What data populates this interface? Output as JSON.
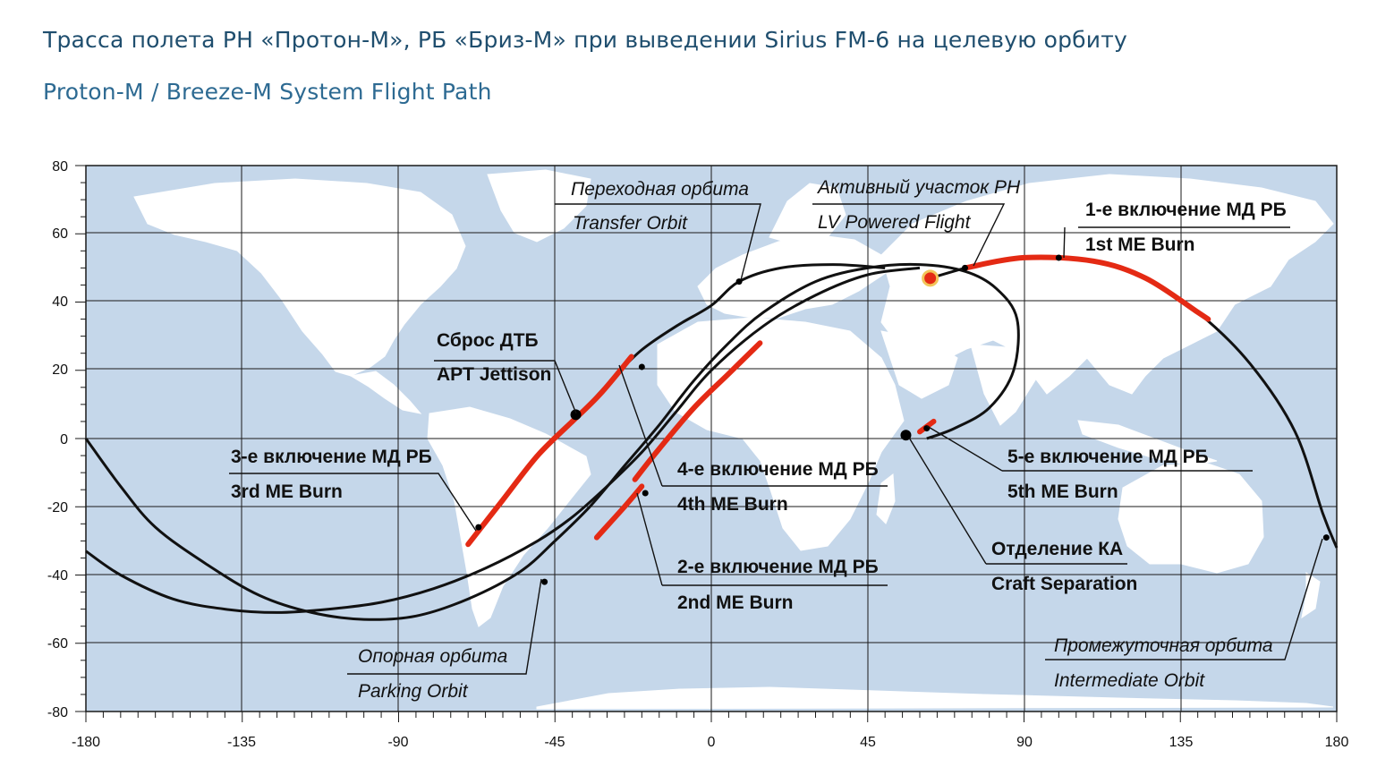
{
  "title_ru": "Трасса полета РН «Протон-М», РБ «Бриз-М» при выведении Sirius FM-6 на целевую орбиту",
  "title_en": "Proton-M / Breeze-M System Flight Path",
  "axes": {
    "x_ticks": [
      "-180",
      "-135",
      "-90",
      "-45",
      "0",
      "45",
      "90",
      "135",
      "180"
    ],
    "y_ticks": [
      "80",
      "60",
      "40",
      "20",
      "0",
      "-20",
      "-40",
      "-60",
      "-80"
    ],
    "xlim": [
      -180,
      180
    ],
    "ylim": [
      -80,
      80
    ]
  },
  "colors": {
    "ocean": "#c5d7ea",
    "land": "#ffffff",
    "grid": "#1a1a1a",
    "track": "#111111",
    "burn": "#e42a14",
    "title": "#1f4e6e"
  },
  "labels": {
    "transfer_ru": "Переходная орбита",
    "transfer_en": "Transfer Orbit",
    "powered_ru": "Активный участок РН",
    "powered_en": "LV Powered Flight",
    "burn1_ru": "1-е включение МД РБ",
    "burn1_en": "1st ME Burn",
    "apt_ru": "Сброс ДТБ",
    "apt_en": "APT Jettison",
    "burn3_ru": "3-е включение МД РБ",
    "burn3_en": "3rd ME Burn",
    "burn4_ru": "4-е включение МД РБ",
    "burn4_en": "4th ME Burn",
    "burn5_ru": "5-е включение МД РБ",
    "burn5_en": "5th ME Burn",
    "burn2_ru": "2-е включение МД РБ",
    "burn2_en": "2nd ME Burn",
    "sep_ru": "Отделение КА",
    "sep_en": "Craft Separation",
    "parking_ru": "Опорная орбита",
    "parking_en": "Parking Orbit",
    "intermediate_ru": "Промежуточная орбита",
    "intermediate_en": "Intermediate Orbit"
  },
  "tracks": [
    {
      "kind": "lv-powered",
      "points": [
        [
          63,
          47
        ],
        [
          73,
          50
        ]
      ]
    },
    {
      "kind": "parking-orbit",
      "points": [
        [
          73,
          50
        ],
        [
          90,
          53
        ],
        [
          110,
          52
        ],
        [
          125,
          47
        ],
        [
          140,
          37
        ],
        [
          155,
          22
        ],
        [
          168,
          2
        ],
        [
          176,
          -22
        ],
        [
          180,
          -32
        ]
      ]
    },
    {
      "kind": "parking-orbit",
      "points": [
        [
          -180,
          -33
        ],
        [
          -170,
          -40
        ],
        [
          -155,
          -47
        ],
        [
          -140,
          -50
        ],
        [
          -125,
          -51
        ],
        [
          -110,
          -50
        ],
        [
          -95,
          -48
        ],
        [
          -80,
          -44
        ],
        [
          -65,
          -38
        ],
        [
          -50,
          -30
        ],
        [
          -40,
          -23
        ],
        [
          -30,
          -14
        ],
        [
          -20,
          -4
        ],
        [
          -10,
          8
        ],
        [
          0,
          20
        ],
        [
          15,
          33
        ],
        [
          30,
          42
        ],
        [
          45,
          48
        ],
        [
          60,
          50
        ]
      ]
    },
    {
      "kind": "intermediate-orbit",
      "points": [
        [
          -180,
          0
        ],
        [
          -170,
          -14
        ],
        [
          -160,
          -26
        ],
        [
          -145,
          -37
        ],
        [
          -130,
          -46
        ],
        [
          -115,
          -51
        ],
        [
          -100,
          -53
        ],
        [
          -85,
          -52
        ],
        [
          -70,
          -47
        ],
        [
          -55,
          -39
        ],
        [
          -45,
          -30
        ],
        [
          -35,
          -20
        ],
        [
          -25,
          -8
        ],
        [
          -15,
          4
        ],
        [
          -5,
          17
        ],
        [
          5,
          28
        ],
        [
          15,
          37
        ],
        [
          30,
          46
        ],
        [
          45,
          50
        ],
        [
          60,
          51
        ],
        [
          73,
          49
        ],
        [
          82,
          44
        ],
        [
          88,
          35
        ],
        [
          87,
          20
        ],
        [
          80,
          9
        ],
        [
          70,
          3
        ],
        [
          62,
          0
        ]
      ]
    },
    {
      "kind": "transfer-orbit",
      "points": [
        [
          -70,
          -31
        ],
        [
          -60,
          -18
        ],
        [
          -50,
          -5
        ],
        [
          -38,
          7
        ],
        [
          -28,
          18
        ],
        [
          -20,
          26
        ],
        [
          -10,
          33
        ],
        [
          0,
          39
        ],
        [
          8,
          46
        ],
        [
          20,
          50
        ],
        [
          35,
          51
        ],
        [
          50,
          50
        ]
      ]
    }
  ],
  "burns": [
    {
      "name": "1st ME Burn",
      "points": [
        [
          73,
          50
        ],
        [
          90,
          53
        ],
        [
          110,
          52
        ],
        [
          125,
          47
        ],
        [
          140,
          37
        ],
        [
          143,
          35
        ]
      ]
    },
    {
      "name": "2nd ME Burn",
      "points": [
        [
          -33,
          -29
        ],
        [
          -25,
          -20
        ],
        [
          -20,
          -14
        ]
      ]
    },
    {
      "name": "4th ME Burn",
      "points": [
        [
          -22,
          -12
        ],
        [
          -15,
          -3
        ],
        [
          -5,
          9
        ],
        [
          5,
          19
        ],
        [
          14,
          28
        ]
      ]
    },
    {
      "name": "3rd ME Burn",
      "points": [
        [
          -70,
          -31
        ],
        [
          -60,
          -18
        ],
        [
          -50,
          -5
        ],
        [
          -40,
          5
        ]
      ]
    },
    {
      "name": "APT segment",
      "points": [
        [
          -40,
          5
        ],
        [
          -32,
          13
        ],
        [
          -23,
          24
        ]
      ]
    },
    {
      "name": "5th ME Burn",
      "points": [
        [
          60,
          2
        ],
        [
          64,
          5
        ]
      ]
    }
  ],
  "markers": [
    {
      "name": "launch-site",
      "lon": 63,
      "lat": 47
    },
    {
      "name": "apt-jettison",
      "lon": -39,
      "lat": 7
    },
    {
      "name": "craft-separation",
      "lon": 56,
      "lat": 1
    }
  ]
}
